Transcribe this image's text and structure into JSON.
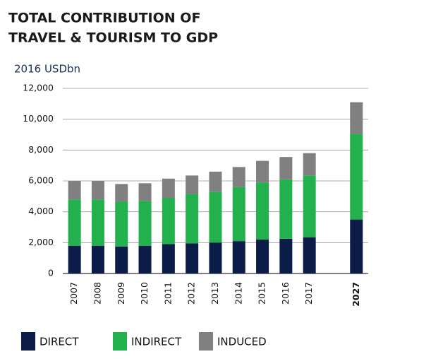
{
  "chart_data": {
    "type": "stacked_bar",
    "title": [
      "TOTAL CONTRIBUTION OF",
      "TRAVEL & TOURISM TO GDP"
    ],
    "subtitle": "2016 USDbn",
    "categories": [
      "2007",
      "2008",
      "2009",
      "2010",
      "2011",
      "2012",
      "2013",
      "2014",
      "2015",
      "2016",
      "2017",
      null,
      "2027"
    ],
    "series": [
      {
        "name": "DIRECT",
        "color": "#0b1c48",
        "values": [
          1800,
          1800,
          1750,
          1800,
          1900,
          1950,
          2000,
          2100,
          2200,
          2250,
          2350,
          null,
          3500
        ]
      },
      {
        "name": "INDIRECT",
        "color": "#23b14d",
        "values": [
          3000,
          3000,
          2900,
          2900,
          3000,
          3200,
          3300,
          3500,
          3700,
          3850,
          4000,
          null,
          5550
        ]
      },
      {
        "name": "INDUCED",
        "color": "#808080",
        "values": [
          1200,
          1200,
          1150,
          1150,
          1250,
          1200,
          1300,
          1300,
          1400,
          1450,
          1450,
          null,
          2050
        ]
      }
    ],
    "ylim": [
      0,
      12000
    ],
    "yticks": [
      0,
      {
        "value": 2000,
        "label": "2,000"
      },
      {
        "value": 4000,
        "label": "4,000"
      },
      {
        "value": 6000,
        "label": "6,000"
      },
      {
        "value": 8000,
        "label": "8,000"
      },
      {
        "value": 10000,
        "label": "10,000"
      },
      {
        "value": 12000,
        "label": "12,000"
      }
    ],
    "grid": true,
    "legend": "bottom"
  }
}
